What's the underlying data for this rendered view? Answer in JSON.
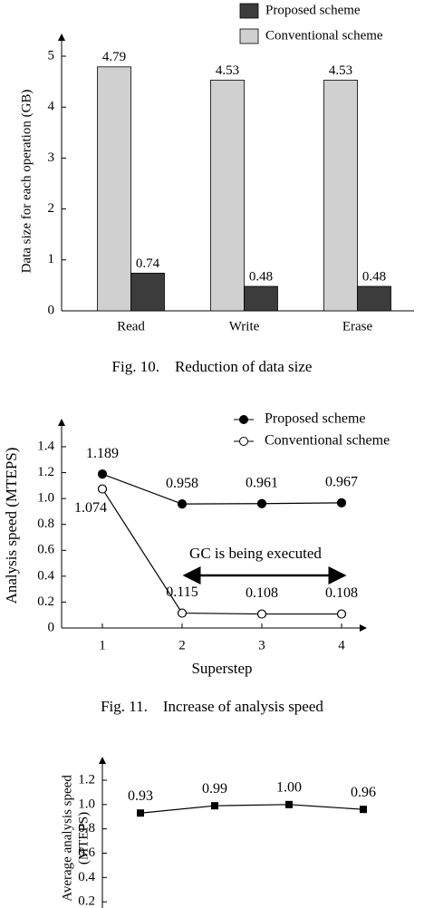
{
  "chart_data": [
    {
      "type": "bar",
      "caption": "Fig. 10.    Reduction of data size",
      "y_label": "Data size for each operation (GB)",
      "categories": [
        "Read",
        "Write",
        "Erase"
      ],
      "series": [
        {
          "name": "Proposed scheme",
          "color": "#3c3c3c",
          "values": [
            0.74,
            0.48,
            0.48
          ]
        },
        {
          "name": "Conventional scheme",
          "color": "#d0d0d0",
          "values": [
            4.79,
            4.53,
            4.53
          ]
        }
      ],
      "ylim": [
        0,
        5
      ],
      "yticks": [
        0,
        1,
        2,
        3,
        4,
        5
      ]
    },
    {
      "type": "line",
      "caption": "Fig. 11.    Increase of analysis speed",
      "x_label": "Superstep",
      "y_label": "Analysis speed (MTEPS)",
      "annotation": "GC is being executed",
      "x": [
        1,
        2,
        3,
        4
      ],
      "series": [
        {
          "name": "Proposed scheme",
          "color": "#000000",
          "values": [
            1.189,
            0.958,
            0.961,
            0.967
          ]
        },
        {
          "name": "Conventional scheme",
          "color": "#000000",
          "values": [
            1.074,
            0.115,
            0.108,
            0.108
          ]
        }
      ],
      "xlim": [
        0.5,
        4.2
      ],
      "xticks": [
        1,
        2,
        3,
        4
      ],
      "ylim": [
        0,
        1.4
      ],
      "yticks": [
        0,
        0.2,
        0.4,
        0.6,
        0.8,
        {
          "value": 1,
          "label": "1.0"
        },
        1.2,
        1.4
      ]
    },
    {
      "type": "category-line",
      "y_label": [
        "Average analysis speed",
        "(MTEPS)"
      ],
      "categories": [
        null,
        null,
        null,
        null
      ],
      "series": [
        {
          "color": "#000000",
          "values": [
            0.93,
            0.99,
            1.0,
            0.96
          ],
          "value_labels": [
            "0.93",
            "0.99",
            "1.00",
            "0.96"
          ]
        }
      ],
      "ylim": [
        0,
        1.2
      ],
      "yticks": [
        0.2,
        0.4,
        0.6,
        0.8,
        {
          "value": 1,
          "label": "1.0"
        },
        1.2
      ]
    }
  ]
}
